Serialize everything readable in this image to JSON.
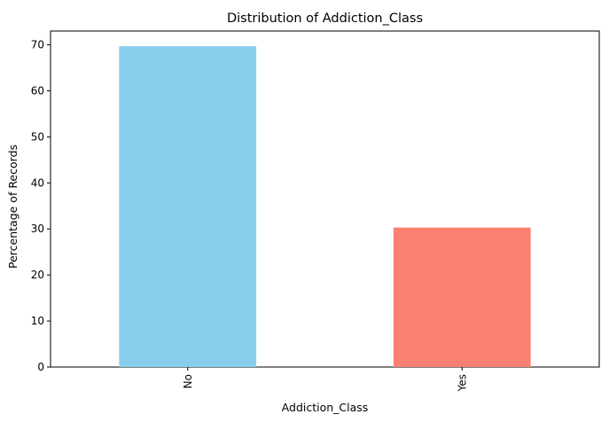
{
  "chart_data": {
    "type": "bar",
    "title": "Distribution of Addiction_Class",
    "xlabel": "Addiction_Class",
    "ylabel": "Percentage of Records",
    "categories": [
      "No",
      "Yes"
    ],
    "values": [
      69.7,
      30.3
    ],
    "colors": [
      "#87ceeb",
      "#fa8072"
    ],
    "ylim": [
      0,
      73
    ],
    "yticks": [
      0,
      10,
      20,
      30,
      40,
      50,
      60,
      70
    ],
    "grid": false,
    "legend": "none"
  }
}
